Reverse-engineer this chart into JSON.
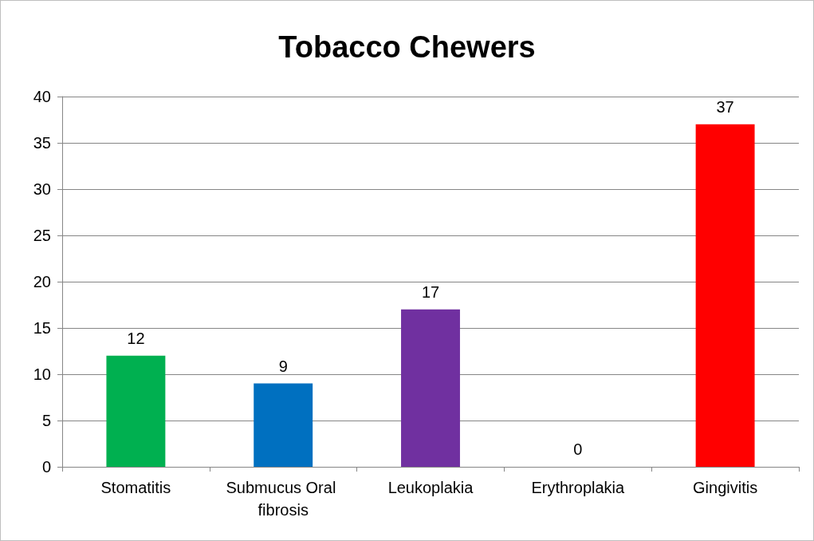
{
  "chart_data": {
    "type": "bar",
    "title": "Tobacco Chewers",
    "categories": [
      "Stomatitis",
      "Submucus Oral fibrosis",
      "Leukoplakia",
      "Erythroplakia",
      "Gingivitis"
    ],
    "values": [
      12,
      9,
      17,
      0,
      37
    ],
    "colors": [
      "#00b050",
      "#0070c0",
      "#7030a0",
      "#ffc000",
      "#ff0000"
    ],
    "ylim": [
      0,
      40
    ],
    "yticks": [
      0,
      5,
      10,
      15,
      20,
      25,
      30,
      35,
      40
    ],
    "grid": "y",
    "data_labels": true
  }
}
